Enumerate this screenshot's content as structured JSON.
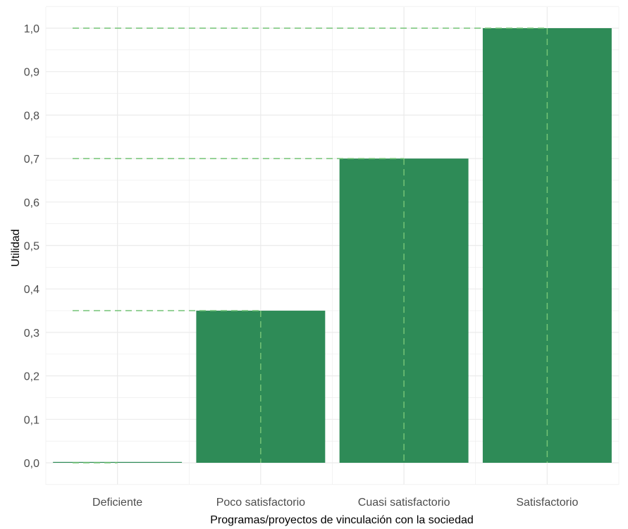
{
  "chart_data": {
    "type": "bar",
    "title": "",
    "xlabel": "Programas/proyectos de vinculación con la sociedad",
    "ylabel": "Utilidad",
    "categories": [
      "Deficiente",
      "Poco satisfactorio",
      "Cuasi satisfactorio",
      "Satisfactorio"
    ],
    "values": [
      0.0,
      0.35,
      0.7,
      1.0
    ],
    "ylim": [
      -0.05,
      1.05
    ],
    "yticks": [
      0.0,
      0.1,
      0.2,
      0.3,
      0.4,
      0.5,
      0.6,
      0.7,
      0.8,
      0.9,
      1.0
    ],
    "ytick_labels": [
      "0,0",
      "0,1",
      "0,2",
      "0,3",
      "0,4",
      "0,5",
      "0,6",
      "0,7",
      "0,8",
      "0,9",
      "1,0"
    ],
    "grid": true,
    "legend": "none",
    "reference_lines": "dashed guide lines from the y-axis to the top of each bar and from each bar top down to zero",
    "colors": {
      "bar": "#2e8b57",
      "reference_line": "#74c476",
      "grid": "#ebebeb",
      "tick_text": "#4d4d4d"
    }
  }
}
